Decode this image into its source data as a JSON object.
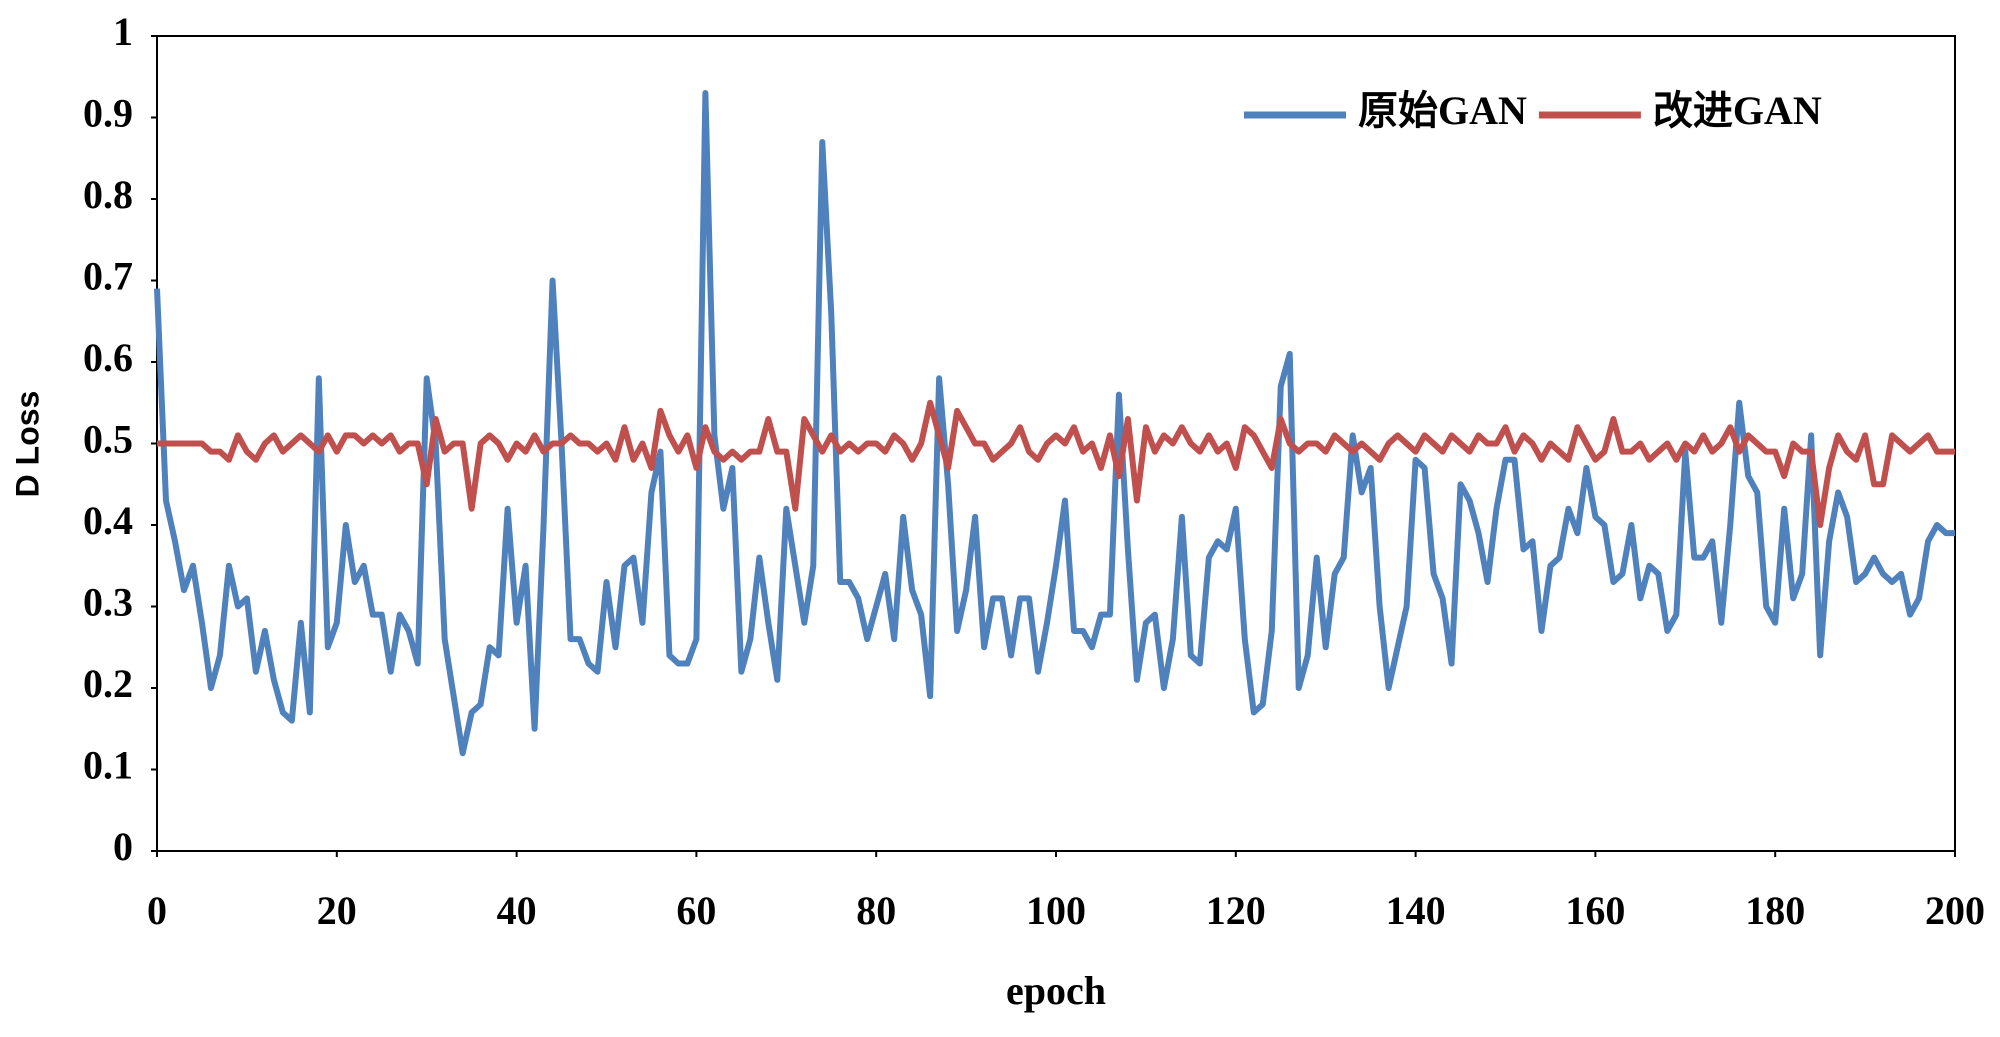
{
  "chart_data": {
    "type": "line",
    "xlabel": "epoch",
    "ylabel": "D Loss",
    "x": [
      0,
      1,
      2,
      3,
      4,
      5,
      6,
      7,
      8,
      9,
      10,
      11,
      12,
      13,
      14,
      15,
      16,
      17,
      18,
      19,
      20,
      21,
      22,
      23,
      24,
      25,
      26,
      27,
      28,
      29,
      30,
      31,
      32,
      33,
      34,
      35,
      36,
      37,
      38,
      39,
      40,
      41,
      42,
      43,
      44,
      45,
      46,
      47,
      48,
      49,
      50,
      51,
      52,
      53,
      54,
      55,
      56,
      57,
      58,
      59,
      60,
      61,
      62,
      63,
      64,
      65,
      66,
      67,
      68,
      69,
      70,
      71,
      72,
      73,
      74,
      75,
      76,
      77,
      78,
      79,
      80,
      81,
      82,
      83,
      84,
      85,
      86,
      87,
      88,
      89,
      90,
      91,
      92,
      93,
      94,
      95,
      96,
      97,
      98,
      99,
      100,
      101,
      102,
      103,
      104,
      105,
      106,
      107,
      108,
      109,
      110,
      111,
      112,
      113,
      114,
      115,
      116,
      117,
      118,
      119,
      120,
      121,
      122,
      123,
      124,
      125,
      126,
      127,
      128,
      129,
      130,
      131,
      132,
      133,
      134,
      135,
      136,
      137,
      138,
      139,
      140,
      141,
      142,
      143,
      144,
      145,
      146,
      147,
      148,
      149,
      150,
      151,
      152,
      153,
      154,
      155,
      156,
      157,
      158,
      159,
      160,
      161,
      162,
      163,
      164,
      165,
      166,
      167,
      168,
      169,
      170,
      171,
      172,
      173,
      174,
      175,
      176,
      177,
      178,
      179,
      180,
      181,
      182,
      183,
      184,
      185,
      186,
      187,
      188,
      189,
      190,
      191,
      192,
      193,
      194,
      195,
      196,
      197,
      198,
      199,
      200
    ],
    "series": [
      {
        "name": "原始GAN",
        "color": "#4f81bd",
        "values": [
          0.69,
          0.43,
          0.38,
          0.32,
          0.35,
          0.28,
          0.2,
          0.24,
          0.35,
          0.3,
          0.31,
          0.22,
          0.27,
          0.21,
          0.17,
          0.16,
          0.28,
          0.17,
          0.58,
          0.25,
          0.28,
          0.4,
          0.33,
          0.35,
          0.29,
          0.29,
          0.22,
          0.29,
          0.27,
          0.23,
          0.58,
          0.5,
          0.26,
          0.19,
          0.12,
          0.17,
          0.18,
          0.25,
          0.24,
          0.42,
          0.28,
          0.35,
          0.15,
          0.4,
          0.7,
          0.5,
          0.26,
          0.26,
          0.23,
          0.22,
          0.33,
          0.25,
          0.35,
          0.36,
          0.28,
          0.44,
          0.49,
          0.24,
          0.23,
          0.23,
          0.26,
          0.93,
          0.51,
          0.42,
          0.47,
          0.22,
          0.26,
          0.36,
          0.28,
          0.21,
          0.42,
          0.35,
          0.28,
          0.35,
          0.87,
          0.66,
          0.33,
          0.33,
          0.31,
          0.26,
          0.3,
          0.34,
          0.26,
          0.41,
          0.32,
          0.29,
          0.19,
          0.58,
          0.45,
          0.27,
          0.32,
          0.41,
          0.25,
          0.31,
          0.31,
          0.24,
          0.31,
          0.31,
          0.22,
          0.28,
          0.35,
          0.43,
          0.27,
          0.27,
          0.25,
          0.29,
          0.29,
          0.56,
          0.37,
          0.21,
          0.28,
          0.29,
          0.2,
          0.26,
          0.41,
          0.24,
          0.23,
          0.36,
          0.38,
          0.37,
          0.42,
          0.26,
          0.17,
          0.18,
          0.27,
          0.57,
          0.61,
          0.2,
          0.24,
          0.36,
          0.25,
          0.34,
          0.36,
          0.51,
          0.44,
          0.47,
          0.3,
          0.2,
          0.25,
          0.3,
          0.48,
          0.47,
          0.34,
          0.31,
          0.23,
          0.45,
          0.43,
          0.39,
          0.33,
          0.42,
          0.48,
          0.48,
          0.37,
          0.38,
          0.27,
          0.35,
          0.36,
          0.42,
          0.39,
          0.47,
          0.41,
          0.4,
          0.33,
          0.34,
          0.4,
          0.31,
          0.35,
          0.34,
          0.27,
          0.29,
          0.49,
          0.36,
          0.36,
          0.38,
          0.28,
          0.4,
          0.55,
          0.46,
          0.44,
          0.3,
          0.28,
          0.42,
          0.31,
          0.34,
          0.51,
          0.24,
          0.38,
          0.44,
          0.41,
          0.33,
          0.34,
          0.36,
          0.34,
          0.33,
          0.34,
          0.29,
          0.31,
          0.38,
          0.4,
          0.39,
          0.39
        ]
      },
      {
        "name": "改进GAN",
        "color": "#c0504d",
        "values": [
          0.5,
          0.5,
          0.5,
          0.5,
          0.5,
          0.5,
          0.49,
          0.49,
          0.48,
          0.51,
          0.49,
          0.48,
          0.5,
          0.51,
          0.49,
          0.5,
          0.51,
          0.5,
          0.49,
          0.51,
          0.49,
          0.51,
          0.51,
          0.5,
          0.51,
          0.5,
          0.51,
          0.49,
          0.5,
          0.5,
          0.45,
          0.53,
          0.49,
          0.5,
          0.5,
          0.42,
          0.5,
          0.51,
          0.5,
          0.48,
          0.5,
          0.49,
          0.51,
          0.49,
          0.5,
          0.5,
          0.51,
          0.5,
          0.5,
          0.49,
          0.5,
          0.48,
          0.52,
          0.48,
          0.5,
          0.47,
          0.54,
          0.51,
          0.49,
          0.51,
          0.47,
          0.52,
          0.49,
          0.48,
          0.49,
          0.48,
          0.49,
          0.49,
          0.53,
          0.49,
          0.49,
          0.42,
          0.53,
          0.51,
          0.49,
          0.51,
          0.49,
          0.5,
          0.49,
          0.5,
          0.5,
          0.49,
          0.51,
          0.5,
          0.48,
          0.5,
          0.55,
          0.51,
          0.47,
          0.54,
          0.52,
          0.5,
          0.5,
          0.48,
          0.49,
          0.5,
          0.52,
          0.49,
          0.48,
          0.5,
          0.51,
          0.5,
          0.52,
          0.49,
          0.5,
          0.47,
          0.51,
          0.46,
          0.53,
          0.43,
          0.52,
          0.49,
          0.51,
          0.5,
          0.52,
          0.5,
          0.49,
          0.51,
          0.49,
          0.5,
          0.47,
          0.52,
          0.51,
          0.49,
          0.47,
          0.53,
          0.5,
          0.49,
          0.5,
          0.5,
          0.49,
          0.51,
          0.5,
          0.49,
          0.5,
          0.49,
          0.48,
          0.5,
          0.51,
          0.5,
          0.49,
          0.51,
          0.5,
          0.49,
          0.51,
          0.5,
          0.49,
          0.51,
          0.5,
          0.5,
          0.52,
          0.49,
          0.51,
          0.5,
          0.48,
          0.5,
          0.49,
          0.48,
          0.52,
          0.5,
          0.48,
          0.49,
          0.53,
          0.49,
          0.49,
          0.5,
          0.48,
          0.49,
          0.5,
          0.48,
          0.5,
          0.49,
          0.51,
          0.49,
          0.5,
          0.52,
          0.49,
          0.51,
          0.5,
          0.49,
          0.49,
          0.46,
          0.5,
          0.49,
          0.49,
          0.4,
          0.47,
          0.51,
          0.49,
          0.48,
          0.51,
          0.45,
          0.45,
          0.51,
          0.5,
          0.49,
          0.5,
          0.51,
          0.49,
          0.49,
          0.49
        ]
      }
    ],
    "xlim": [
      0,
      200
    ],
    "xticks": [
      0,
      20,
      40,
      60,
      80,
      100,
      120,
      140,
      160,
      180,
      200
    ],
    "ylim": [
      0,
      1
    ],
    "yticks": [
      0,
      0.1,
      0.2,
      0.3,
      0.4,
      0.5,
      0.6,
      0.7,
      0.8,
      0.9,
      1
    ],
    "grid": false,
    "legend": "upper right"
  }
}
